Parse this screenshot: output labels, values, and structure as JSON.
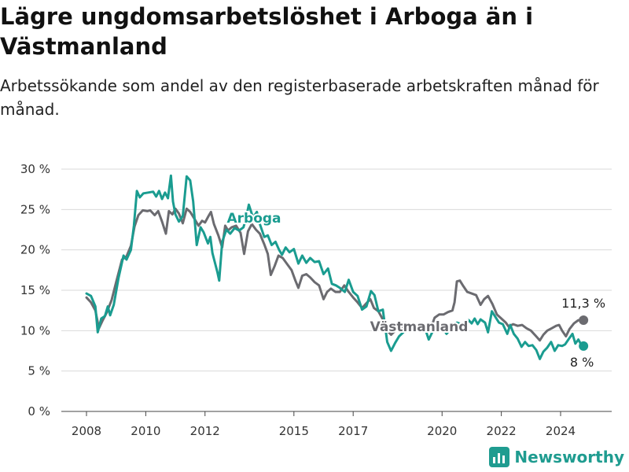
{
  "chart_data": {
    "type": "line",
    "title": "Lägre ungdomsarbetslöshet i Arboga än i Västmanland",
    "subtitle": "Arbetssökande som andel av den registerbaserade arbetskraften månad för månad.",
    "y_ticks": [
      "0 %",
      "5 %",
      "10 %",
      "15 %",
      "20 %",
      "25 %",
      "30 %"
    ],
    "x_ticks": [
      "2008",
      "2010",
      "2012",
      "2015",
      "2017",
      "2020",
      "2022",
      "2024"
    ],
    "ylim": [
      0,
      30
    ],
    "grid": true,
    "series": [
      {
        "name": "Arboga",
        "color": "#1a9c90",
        "end_label": "8 %",
        "points": [
          [
            2008.0,
            14.6
          ],
          [
            2008.15,
            14.3
          ],
          [
            2008.3,
            13.0
          ],
          [
            2008.38,
            9.8
          ],
          [
            2008.5,
            11.5
          ],
          [
            2008.62,
            11.8
          ],
          [
            2008.72,
            13.0
          ],
          [
            2008.8,
            11.9
          ],
          [
            2008.92,
            13.2
          ],
          [
            2009.08,
            16.5
          ],
          [
            2009.25,
            19.3
          ],
          [
            2009.35,
            18.8
          ],
          [
            2009.5,
            20.0
          ],
          [
            2009.6,
            23.0
          ],
          [
            2009.7,
            27.3
          ],
          [
            2009.8,
            26.5
          ],
          [
            2009.92,
            27.0
          ],
          [
            2010.08,
            27.1
          ],
          [
            2010.25,
            27.2
          ],
          [
            2010.35,
            26.6
          ],
          [
            2010.45,
            27.3
          ],
          [
            2010.55,
            26.3
          ],
          [
            2010.65,
            27.1
          ],
          [
            2010.75,
            26.4
          ],
          [
            2010.85,
            29.2
          ],
          [
            2010.92,
            26.0
          ],
          [
            2011.0,
            24.4
          ],
          [
            2011.12,
            23.5
          ],
          [
            2011.25,
            24.2
          ],
          [
            2011.38,
            29.1
          ],
          [
            2011.5,
            28.6
          ],
          [
            2011.6,
            26.0
          ],
          [
            2011.72,
            20.6
          ],
          [
            2011.85,
            22.8
          ],
          [
            2011.95,
            22.2
          ],
          [
            2012.1,
            20.8
          ],
          [
            2012.18,
            21.6
          ],
          [
            2012.25,
            19.6
          ],
          [
            2012.42,
            17.2
          ],
          [
            2012.48,
            16.2
          ],
          [
            2012.58,
            21.0
          ],
          [
            2012.72,
            22.5
          ],
          [
            2012.85,
            22.0
          ],
          [
            2013.0,
            22.7
          ],
          [
            2013.15,
            22.4
          ],
          [
            2013.3,
            22.8
          ],
          [
            2013.4,
            24.2
          ],
          [
            2013.48,
            25.6
          ],
          [
            2013.62,
            24.0
          ],
          [
            2013.75,
            24.7
          ],
          [
            2013.85,
            23.2
          ],
          [
            2014.0,
            21.6
          ],
          [
            2014.12,
            21.8
          ],
          [
            2014.25,
            20.6
          ],
          [
            2014.38,
            21.0
          ],
          [
            2014.5,
            20.0
          ],
          [
            2014.6,
            19.4
          ],
          [
            2014.72,
            20.3
          ],
          [
            2014.85,
            19.7
          ],
          [
            2015.0,
            20.1
          ],
          [
            2015.15,
            18.3
          ],
          [
            2015.28,
            19.3
          ],
          [
            2015.42,
            18.4
          ],
          [
            2015.55,
            19.0
          ],
          [
            2015.7,
            18.5
          ],
          [
            2015.85,
            18.6
          ],
          [
            2016.0,
            17.0
          ],
          [
            2016.15,
            17.7
          ],
          [
            2016.28,
            15.8
          ],
          [
            2016.42,
            15.6
          ],
          [
            2016.55,
            15.3
          ],
          [
            2016.72,
            14.8
          ],
          [
            2016.85,
            16.3
          ],
          [
            2017.0,
            14.8
          ],
          [
            2017.15,
            14.3
          ],
          [
            2017.3,
            12.6
          ],
          [
            2017.45,
            13.0
          ],
          [
            2017.6,
            14.9
          ],
          [
            2017.72,
            14.4
          ],
          [
            2017.85,
            12.4
          ],
          [
            2018.0,
            12.6
          ],
          [
            2018.15,
            8.6
          ],
          [
            2018.28,
            7.5
          ],
          [
            2018.42,
            8.5
          ],
          [
            2018.55,
            9.3
          ],
          [
            2018.72,
            9.9
          ],
          [
            2018.9,
            10.0
          ],
          [
            2019.2,
            10.3
          ],
          [
            2019.45,
            10.0
          ],
          [
            2019.55,
            8.9
          ],
          [
            2019.68,
            9.9
          ],
          [
            2019.85,
            10.5
          ],
          [
            2020.0,
            10.5
          ],
          [
            2020.15,
            9.6
          ],
          [
            2020.3,
            10.3
          ],
          [
            2020.5,
            11.0
          ],
          [
            2020.65,
            10.8
          ],
          [
            2020.78,
            10.5
          ],
          [
            2020.9,
            11.3
          ],
          [
            2021.0,
            10.9
          ],
          [
            2021.1,
            11.5
          ],
          [
            2021.2,
            10.8
          ],
          [
            2021.3,
            11.4
          ],
          [
            2021.45,
            11.0
          ],
          [
            2021.55,
            9.8
          ],
          [
            2021.68,
            12.4
          ],
          [
            2021.8,
            11.7
          ],
          [
            2021.92,
            11.0
          ],
          [
            2022.05,
            10.8
          ],
          [
            2022.2,
            9.6
          ],
          [
            2022.3,
            10.7
          ],
          [
            2022.42,
            9.6
          ],
          [
            2022.55,
            9.0
          ],
          [
            2022.68,
            8.0
          ],
          [
            2022.8,
            8.6
          ],
          [
            2022.92,
            8.1
          ],
          [
            2023.05,
            8.2
          ],
          [
            2023.18,
            7.6
          ],
          [
            2023.3,
            6.5
          ],
          [
            2023.42,
            7.4
          ],
          [
            2023.55,
            7.9
          ],
          [
            2023.68,
            8.6
          ],
          [
            2023.8,
            7.5
          ],
          [
            2023.92,
            8.2
          ],
          [
            2024.05,
            8.1
          ],
          [
            2024.15,
            8.3
          ],
          [
            2024.28,
            9.0
          ],
          [
            2024.4,
            9.6
          ],
          [
            2024.5,
            8.4
          ],
          [
            2024.6,
            8.9
          ],
          [
            2024.72,
            8.1
          ]
        ]
      },
      {
        "name": "Västmanland",
        "color": "#6b6b70",
        "end_label": "11,3 %",
        "points": [
          [
            2008.0,
            14.1
          ],
          [
            2008.15,
            13.5
          ],
          [
            2008.3,
            12.5
          ],
          [
            2008.42,
            10.3
          ],
          [
            2008.55,
            11.3
          ],
          [
            2008.68,
            12.2
          ],
          [
            2008.85,
            13.8
          ],
          [
            2009.0,
            16.0
          ],
          [
            2009.2,
            18.8
          ],
          [
            2009.35,
            19.2
          ],
          [
            2009.5,
            20.5
          ],
          [
            2009.62,
            22.9
          ],
          [
            2009.75,
            24.3
          ],
          [
            2009.9,
            24.9
          ],
          [
            2010.05,
            24.8
          ],
          [
            2010.15,
            24.9
          ],
          [
            2010.3,
            24.3
          ],
          [
            2010.42,
            24.8
          ],
          [
            2010.55,
            23.5
          ],
          [
            2010.68,
            22.0
          ],
          [
            2010.78,
            24.8
          ],
          [
            2010.9,
            24.4
          ],
          [
            2011.0,
            25.1
          ],
          [
            2011.12,
            24.5
          ],
          [
            2011.25,
            23.3
          ],
          [
            2011.38,
            25.1
          ],
          [
            2011.5,
            24.7
          ],
          [
            2011.65,
            23.8
          ],
          [
            2011.78,
            23.0
          ],
          [
            2011.9,
            23.6
          ],
          [
            2012.0,
            23.4
          ],
          [
            2012.12,
            24.2
          ],
          [
            2012.2,
            24.7
          ],
          [
            2012.3,
            23.2
          ],
          [
            2012.45,
            21.8
          ],
          [
            2012.58,
            20.3
          ],
          [
            2012.68,
            23.0
          ],
          [
            2012.78,
            22.4
          ],
          [
            2012.9,
            22.8
          ],
          [
            2013.05,
            23.0
          ],
          [
            2013.2,
            22.1
          ],
          [
            2013.32,
            19.5
          ],
          [
            2013.45,
            22.3
          ],
          [
            2013.58,
            23.2
          ],
          [
            2013.72,
            22.5
          ],
          [
            2013.85,
            22.0
          ],
          [
            2014.0,
            20.7
          ],
          [
            2014.12,
            19.5
          ],
          [
            2014.22,
            16.9
          ],
          [
            2014.35,
            18.0
          ],
          [
            2014.48,
            19.3
          ],
          [
            2014.62,
            19.0
          ],
          [
            2014.78,
            18.2
          ],
          [
            2014.92,
            17.5
          ],
          [
            2015.05,
            16.2
          ],
          [
            2015.15,
            15.3
          ],
          [
            2015.28,
            16.8
          ],
          [
            2015.42,
            17.0
          ],
          [
            2015.55,
            16.6
          ],
          [
            2015.7,
            16.0
          ],
          [
            2015.85,
            15.6
          ],
          [
            2016.0,
            13.9
          ],
          [
            2016.12,
            14.8
          ],
          [
            2016.25,
            15.2
          ],
          [
            2016.4,
            14.8
          ],
          [
            2016.55,
            14.8
          ],
          [
            2016.7,
            15.6
          ],
          [
            2016.85,
            14.8
          ],
          [
            2017.0,
            14.1
          ],
          [
            2017.15,
            13.5
          ],
          [
            2017.3,
            12.8
          ],
          [
            2017.45,
            13.4
          ],
          [
            2017.58,
            13.9
          ],
          [
            2017.7,
            12.8
          ],
          [
            2017.85,
            12.4
          ],
          [
            2018.0,
            11.4
          ],
          [
            2018.15,
            10.0
          ],
          [
            2018.28,
            9.5
          ],
          [
            2018.42,
            10.0
          ],
          [
            2018.55,
            10.3
          ],
          [
            2018.72,
            10.5
          ],
          [
            2018.9,
            10.6
          ],
          [
            2019.2,
            10.4
          ],
          [
            2019.45,
            10.5
          ],
          [
            2019.62,
            10.3
          ],
          [
            2019.75,
            11.6
          ],
          [
            2019.9,
            12.0
          ],
          [
            2020.05,
            12.0
          ],
          [
            2020.2,
            12.3
          ],
          [
            2020.35,
            12.5
          ],
          [
            2020.42,
            13.5
          ],
          [
            2020.5,
            16.1
          ],
          [
            2020.6,
            16.2
          ],
          [
            2020.72,
            15.5
          ],
          [
            2020.85,
            14.8
          ],
          [
            2021.0,
            14.6
          ],
          [
            2021.15,
            14.4
          ],
          [
            2021.3,
            13.2
          ],
          [
            2021.42,
            13.9
          ],
          [
            2021.55,
            14.3
          ],
          [
            2021.7,
            13.3
          ],
          [
            2021.85,
            12.0
          ],
          [
            2022.0,
            11.5
          ],
          [
            2022.15,
            11.0
          ],
          [
            2022.25,
            10.5
          ],
          [
            2022.4,
            10.8
          ],
          [
            2022.55,
            10.6
          ],
          [
            2022.7,
            10.7
          ],
          [
            2022.85,
            10.3
          ],
          [
            2023.0,
            10.0
          ],
          [
            2023.15,
            9.4
          ],
          [
            2023.3,
            8.8
          ],
          [
            2023.42,
            9.5
          ],
          [
            2023.55,
            10.0
          ],
          [
            2023.7,
            10.3
          ],
          [
            2023.85,
            10.6
          ],
          [
            2023.95,
            10.7
          ],
          [
            2024.05,
            10.0
          ],
          [
            2024.18,
            9.3
          ],
          [
            2024.3,
            10.2
          ],
          [
            2024.45,
            10.9
          ],
          [
            2024.6,
            11.3
          ],
          [
            2024.72,
            11.3
          ]
        ]
      }
    ]
  },
  "brand": {
    "name": "Newsworthy",
    "color": "#1f9c90"
  }
}
